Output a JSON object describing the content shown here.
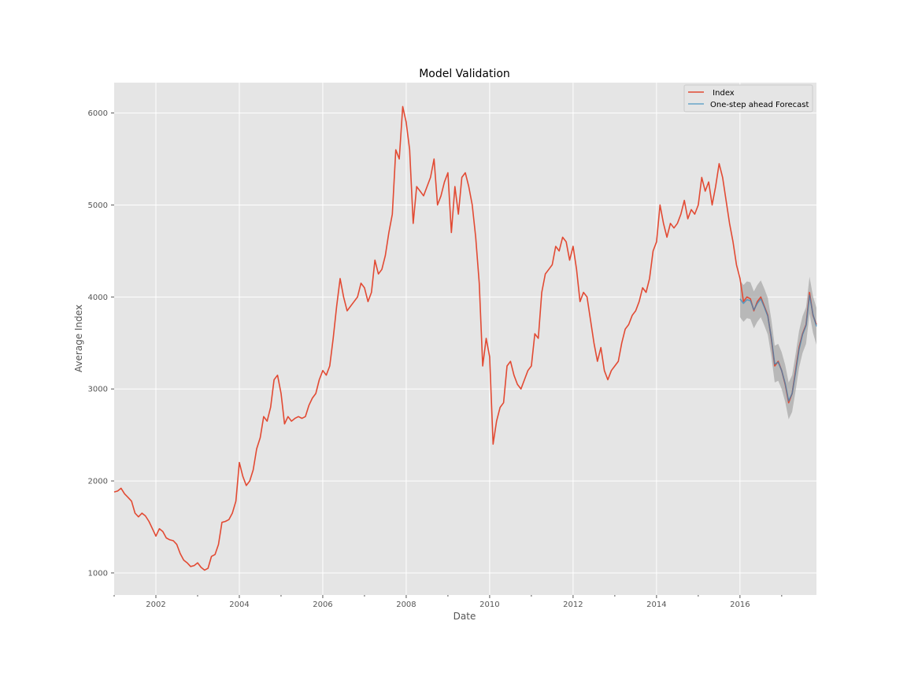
{
  "chart_data": {
    "type": "line",
    "title": "Model Validation",
    "xlabel": "Date",
    "ylabel": "Average Index",
    "xlim": [
      "2001-01",
      "2017-11"
    ],
    "ylim": [
      760,
      6330
    ],
    "x_ticks": [
      "2002",
      "2004",
      "2006",
      "2008",
      "2010",
      "2012",
      "2014",
      "2016"
    ],
    "y_ticks": [
      1000,
      2000,
      3000,
      4000,
      5000,
      6000
    ],
    "grid": true,
    "legend_position": "top-right",
    "colors": {
      "index": "#E24A33",
      "forecast": "#348ABD",
      "band": "#9a9a9a",
      "panel": "#E5E5E5"
    },
    "series": [
      {
        "name": " Index",
        "points": [
          [
            "2001-01",
            1880
          ],
          [
            "2001-02",
            1890
          ],
          [
            "2001-03",
            1920
          ],
          [
            "2001-04",
            1860
          ],
          [
            "2001-05",
            1820
          ],
          [
            "2001-06",
            1780
          ],
          [
            "2001-07",
            1650
          ],
          [
            "2001-08",
            1610
          ],
          [
            "2001-09",
            1650
          ],
          [
            "2001-10",
            1620
          ],
          [
            "2001-11",
            1560
          ],
          [
            "2001-12",
            1480
          ],
          [
            "2002-01",
            1400
          ],
          [
            "2002-02",
            1480
          ],
          [
            "2002-03",
            1450
          ],
          [
            "2002-04",
            1380
          ],
          [
            "2002-05",
            1360
          ],
          [
            "2002-06",
            1350
          ],
          [
            "2002-07",
            1310
          ],
          [
            "2002-08",
            1210
          ],
          [
            "2002-09",
            1140
          ],
          [
            "2002-10",
            1110
          ],
          [
            "2002-11",
            1070
          ],
          [
            "2002-12",
            1080
          ],
          [
            "2003-01",
            1110
          ],
          [
            "2003-02",
            1060
          ],
          [
            "2003-03",
            1030
          ],
          [
            "2003-04",
            1050
          ],
          [
            "2003-05",
            1180
          ],
          [
            "2003-06",
            1200
          ],
          [
            "2003-07",
            1310
          ],
          [
            "2003-08",
            1550
          ],
          [
            "2003-09",
            1560
          ],
          [
            "2003-10",
            1580
          ],
          [
            "2003-11",
            1650
          ],
          [
            "2003-12",
            1780
          ],
          [
            "2004-01",
            2200
          ],
          [
            "2004-02",
            2050
          ],
          [
            "2004-03",
            1950
          ],
          [
            "2004-04",
            2000
          ],
          [
            "2004-05",
            2120
          ],
          [
            "2004-06",
            2350
          ],
          [
            "2004-07",
            2470
          ],
          [
            "2004-08",
            2700
          ],
          [
            "2004-09",
            2650
          ],
          [
            "2004-10",
            2800
          ],
          [
            "2004-11",
            3100
          ],
          [
            "2004-12",
            3150
          ],
          [
            "2005-01",
            2950
          ],
          [
            "2005-02",
            2620
          ],
          [
            "2005-03",
            2700
          ],
          [
            "2005-04",
            2650
          ],
          [
            "2005-05",
            2680
          ],
          [
            "2005-06",
            2700
          ],
          [
            "2005-07",
            2680
          ],
          [
            "2005-08",
            2700
          ],
          [
            "2005-09",
            2820
          ],
          [
            "2005-10",
            2900
          ],
          [
            "2005-11",
            2950
          ],
          [
            "2005-12",
            3100
          ],
          [
            "2006-01",
            3200
          ],
          [
            "2006-02",
            3150
          ],
          [
            "2006-03",
            3250
          ],
          [
            "2006-04",
            3550
          ],
          [
            "2006-05",
            3900
          ],
          [
            "2006-06",
            4200
          ],
          [
            "2006-07",
            4000
          ],
          [
            "2006-08",
            3850
          ],
          [
            "2006-09",
            3900
          ],
          [
            "2006-10",
            3950
          ],
          [
            "2006-11",
            4000
          ],
          [
            "2006-12",
            4150
          ],
          [
            "2007-01",
            4100
          ],
          [
            "2007-02",
            3950
          ],
          [
            "2007-03",
            4050
          ],
          [
            "2007-04",
            4400
          ],
          [
            "2007-05",
            4250
          ],
          [
            "2007-06",
            4300
          ],
          [
            "2007-07",
            4450
          ],
          [
            "2007-08",
            4700
          ],
          [
            "2007-09",
            4900
          ],
          [
            "2007-10",
            5600
          ],
          [
            "2007-11",
            5500
          ],
          [
            "2007-12",
            6070
          ],
          [
            "2008-01",
            5900
          ],
          [
            "2008-02",
            5600
          ],
          [
            "2008-03",
            4800
          ],
          [
            "2008-04",
            5200
          ],
          [
            "2008-05",
            5150
          ],
          [
            "2008-06",
            5100
          ],
          [
            "2008-07",
            5200
          ],
          [
            "2008-08",
            5300
          ],
          [
            "2008-09",
            5500
          ],
          [
            "2008-10",
            5000
          ],
          [
            "2008-11",
            5100
          ],
          [
            "2008-12",
            5250
          ],
          [
            "2009-01",
            5350
          ],
          [
            "2009-02",
            4700
          ],
          [
            "2009-03",
            5200
          ],
          [
            "2009-04",
            4900
          ],
          [
            "2009-05",
            5300
          ],
          [
            "2009-06",
            5350
          ],
          [
            "2009-07",
            5200
          ],
          [
            "2009-08",
            5000
          ],
          [
            "2009-09",
            4650
          ],
          [
            "2009-10",
            4150
          ],
          [
            "2009-11",
            3250
          ],
          [
            "2009-12",
            3550
          ],
          [
            "2010-01",
            3350
          ],
          [
            "2010-02",
            2400
          ],
          [
            "2010-03",
            2650
          ],
          [
            "2010-04",
            2800
          ],
          [
            "2010-05",
            2850
          ],
          [
            "2010-06",
            3250
          ],
          [
            "2010-07",
            3300
          ],
          [
            "2010-08",
            3150
          ],
          [
            "2010-09",
            3050
          ],
          [
            "2010-10",
            3000
          ],
          [
            "2010-11",
            3100
          ],
          [
            "2010-12",
            3200
          ],
          [
            "2011-01",
            3250
          ],
          [
            "2011-02",
            3600
          ],
          [
            "2011-03",
            3550
          ],
          [
            "2011-04",
            4050
          ],
          [
            "2011-05",
            4250
          ],
          [
            "2011-06",
            4300
          ],
          [
            "2011-07",
            4350
          ],
          [
            "2011-08",
            4550
          ],
          [
            "2011-09",
            4500
          ],
          [
            "2011-10",
            4650
          ],
          [
            "2011-11",
            4600
          ],
          [
            "2011-12",
            4400
          ],
          [
            "2012-01",
            4550
          ],
          [
            "2012-02",
            4300
          ],
          [
            "2012-03",
            3950
          ],
          [
            "2012-04",
            4050
          ],
          [
            "2012-05",
            4000
          ],
          [
            "2012-06",
            3750
          ],
          [
            "2012-07",
            3500
          ],
          [
            "2012-08",
            3300
          ],
          [
            "2012-09",
            3450
          ],
          [
            "2012-10",
            3200
          ],
          [
            "2012-11",
            3100
          ],
          [
            "2012-12",
            3200
          ],
          [
            "2013-01",
            3250
          ],
          [
            "2013-02",
            3300
          ],
          [
            "2013-03",
            3500
          ],
          [
            "2013-04",
            3650
          ],
          [
            "2013-05",
            3700
          ],
          [
            "2013-06",
            3800
          ],
          [
            "2013-07",
            3850
          ],
          [
            "2013-08",
            3950
          ],
          [
            "2013-09",
            4100
          ],
          [
            "2013-10",
            4050
          ],
          [
            "2013-11",
            4200
          ],
          [
            "2013-12",
            4500
          ],
          [
            "2014-01",
            4600
          ],
          [
            "2014-02",
            5000
          ],
          [
            "2014-03",
            4800
          ],
          [
            "2014-04",
            4650
          ],
          [
            "2014-05",
            4800
          ],
          [
            "2014-06",
            4750
          ],
          [
            "2014-07",
            4800
          ],
          [
            "2014-08",
            4900
          ],
          [
            "2014-09",
            5050
          ],
          [
            "2014-10",
            4850
          ],
          [
            "2014-11",
            4950
          ],
          [
            "2014-12",
            4900
          ],
          [
            "2015-01",
            5000
          ],
          [
            "2015-02",
            5300
          ],
          [
            "2015-03",
            5150
          ],
          [
            "2015-04",
            5250
          ],
          [
            "2015-05",
            5000
          ],
          [
            "2015-06",
            5200
          ],
          [
            "2015-07",
            5450
          ],
          [
            "2015-08",
            5300
          ],
          [
            "2015-09",
            5050
          ],
          [
            "2015-10",
            4800
          ],
          [
            "2015-11",
            4600
          ],
          [
            "2015-12",
            4350
          ],
          [
            "2016-01",
            4200
          ],
          [
            "2016-02",
            3950
          ],
          [
            "2016-03",
            4000
          ],
          [
            "2016-04",
            3980
          ],
          [
            "2016-05",
            3850
          ],
          [
            "2016-06",
            3950
          ],
          [
            "2016-07",
            4000
          ],
          [
            "2016-08",
            3900
          ],
          [
            "2016-09",
            3800
          ],
          [
            "2016-10",
            3550
          ],
          [
            "2016-11",
            3250
          ],
          [
            "2016-12",
            3300
          ],
          [
            "2017-01",
            3200
          ],
          [
            "2017-02",
            3050
          ],
          [
            "2017-03",
            2850
          ],
          [
            "2017-04",
            2950
          ],
          [
            "2017-05",
            3200
          ],
          [
            "2017-06",
            3450
          ],
          [
            "2017-07",
            3600
          ],
          [
            "2017-08",
            3700
          ],
          [
            "2017-09",
            4050
          ],
          [
            "2017-10",
            3800
          ],
          [
            "2017-11",
            3700
          ]
        ]
      },
      {
        "name": "One-step ahead Forecast",
        "points": [
          [
            "2016-01",
            3980
          ],
          [
            "2016-02",
            3930
          ],
          [
            "2016-03",
            3970
          ],
          [
            "2016-04",
            3960
          ],
          [
            "2016-05",
            3860
          ],
          [
            "2016-06",
            3930
          ],
          [
            "2016-07",
            3980
          ],
          [
            "2016-08",
            3890
          ],
          [
            "2016-09",
            3790
          ],
          [
            "2016-10",
            3560
          ],
          [
            "2016-11",
            3270
          ],
          [
            "2016-12",
            3290
          ],
          [
            "2017-01",
            3200
          ],
          [
            "2017-02",
            3060
          ],
          [
            "2017-03",
            2870
          ],
          [
            "2017-04",
            2950
          ],
          [
            "2017-05",
            3180
          ],
          [
            "2017-06",
            3430
          ],
          [
            "2017-07",
            3590
          ],
          [
            "2017-08",
            3690
          ],
          [
            "2017-09",
            4020
          ],
          [
            "2017-10",
            3810
          ],
          [
            "2017-11",
            3680
          ]
        ],
        "ci_half_width": 200
      }
    ]
  }
}
